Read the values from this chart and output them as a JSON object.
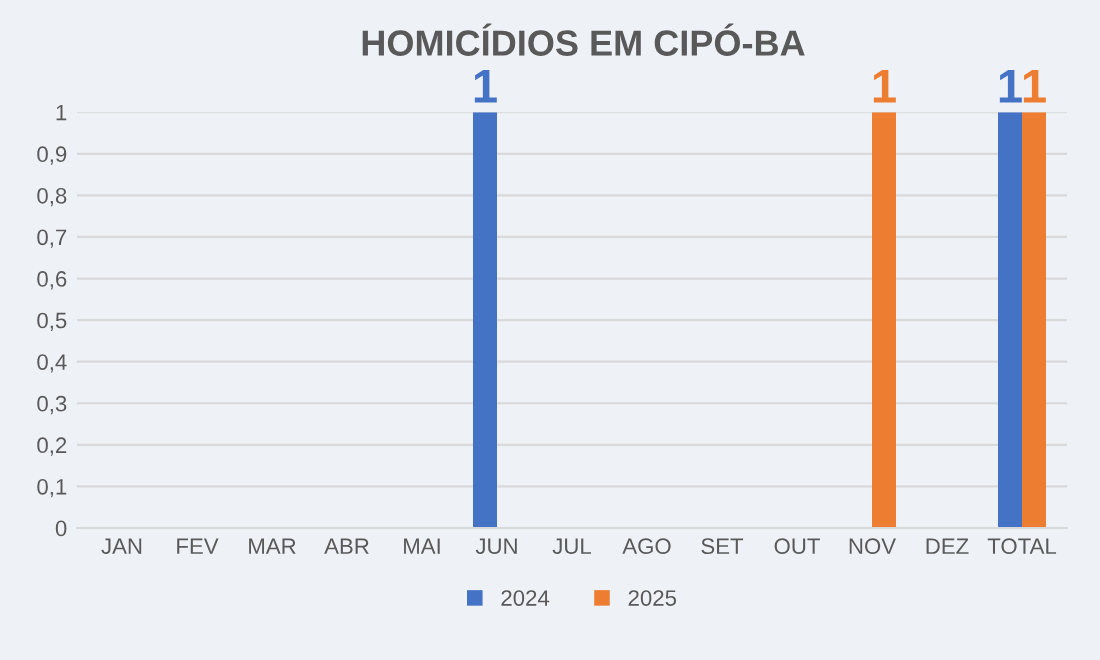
{
  "chart_data": {
    "type": "bar",
    "title": "HOMICÍDIOS EM CIPÓ-BA",
    "categories": [
      "JAN",
      "FEV",
      "MAR",
      "ABR",
      "MAI",
      "JUN",
      "JUL",
      "AGO",
      "SET",
      "OUT",
      "NOV",
      "DEZ",
      "TOTAL"
    ],
    "series": [
      {
        "name": "2024",
        "color": "#4472c4",
        "values": [
          0,
          0,
          0,
          0,
          0,
          1,
          0,
          0,
          0,
          0,
          0,
          0,
          1
        ],
        "value_labels": [
          null,
          null,
          null,
          null,
          null,
          "1",
          null,
          null,
          null,
          null,
          null,
          null,
          "1"
        ]
      },
      {
        "name": "2025",
        "color": "#ed7d31",
        "values": [
          0,
          0,
          0,
          0,
          0,
          0,
          0,
          0,
          0,
          0,
          1,
          0,
          1
        ],
        "value_labels": [
          null,
          null,
          null,
          null,
          null,
          null,
          null,
          null,
          null,
          null,
          "1",
          null,
          "1"
        ]
      }
    ],
    "ylim": [
      0,
      1
    ],
    "yticks": [
      0,
      {
        "value": 0.1,
        "label": "0,1"
      },
      {
        "value": 0.2,
        "label": "0,2"
      },
      {
        "value": 0.3,
        "label": "0,3"
      },
      {
        "value": 0.4,
        "label": "0,4"
      },
      {
        "value": 0.5,
        "label": "0,5"
      },
      {
        "value": 0.6,
        "label": "0,6"
      },
      {
        "value": 0.7,
        "label": "0,7"
      },
      {
        "value": 0.8,
        "label": "0,8"
      },
      {
        "value": 0.9,
        "label": "0,9"
      },
      1
    ],
    "grid": "y",
    "legend": "bottom"
  }
}
